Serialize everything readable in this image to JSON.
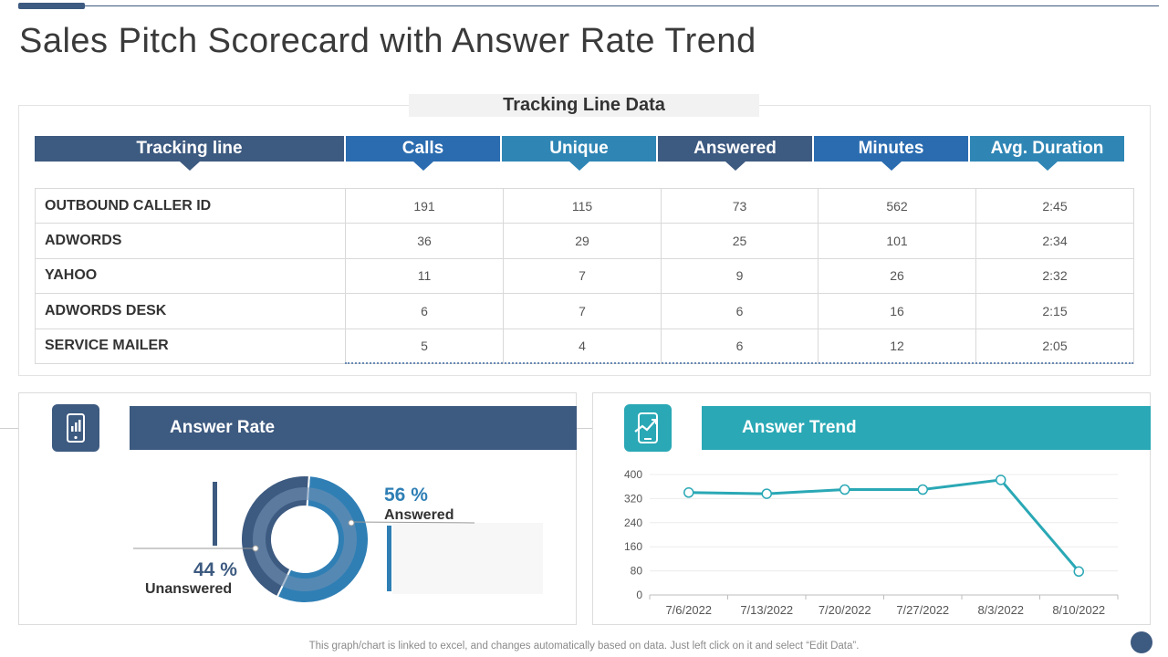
{
  "title": "Sales Pitch Scorecard with Answer Rate Trend",
  "table": {
    "caption": "Tracking Line Data",
    "headers": [
      "Tracking line",
      "Calls",
      "Unique",
      "Answered",
      "Minutes",
      "Avg. Duration"
    ],
    "header_colors": [
      "#3d5a80",
      "#2b6cb0",
      "#2f86b5",
      "#3d5a80",
      "#2b6cb0",
      "#2f86b5"
    ],
    "rows": [
      [
        "OUTBOUND CALLER ID",
        "191",
        "115",
        "73",
        "562",
        "2:45"
      ],
      [
        "ADWORDS",
        "36",
        "29",
        "25",
        "101",
        "2:34"
      ],
      [
        "YAHOO",
        "11",
        "7",
        "9",
        "26",
        "2:32"
      ],
      [
        "ADWORDS DESK",
        "6",
        "7",
        "6",
        "16",
        "2:15"
      ],
      [
        "SERVICE MAILER",
        "5",
        "4",
        "6",
        "12",
        "2:05"
      ]
    ]
  },
  "answer_rate": {
    "heading": "Answer Rate",
    "icon": "mobile-chart-icon",
    "answered_pct": "56 %",
    "answered_label": "Answered",
    "unanswered_pct": "44 %",
    "unanswered_label": "Unanswered",
    "color_answered": "#2f7fb5",
    "color_unanswered": "#3d5a80",
    "color_inner": "#6f8fb3"
  },
  "answer_trend": {
    "heading": "Answer Trend",
    "icon": "mobile-trend-icon",
    "color": "#2aa8b5"
  },
  "chart_data": [
    {
      "type": "pie",
      "categories": [
        "Answered",
        "Unanswered"
      ],
      "values": [
        56,
        44
      ]
    },
    {
      "type": "line",
      "categories": [
        "7/6/2022",
        "7/13/2022",
        "7/20/2022",
        "7/27/2022",
        "8/3/2022",
        "8/10/2022"
      ],
      "series": [
        {
          "values": [
            340,
            336,
            350,
            350,
            382,
            78
          ]
        }
      ],
      "yticks": [
        "0",
        "80",
        "160",
        "240",
        "320",
        "400"
      ],
      "ylim": [
        0,
        400
      ],
      "grid": true
    }
  ],
  "footer": "This graph/chart is linked to excel,  and changes automatically based on data. Just left click on it and select “Edit Data”."
}
